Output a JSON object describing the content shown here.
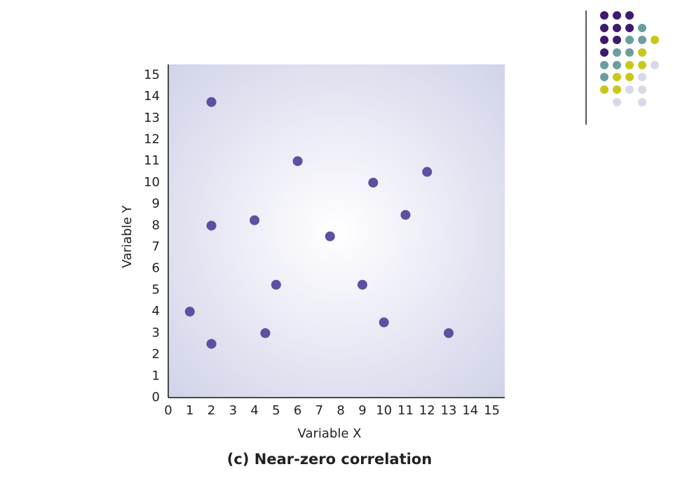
{
  "chart_data": {
    "type": "scatter",
    "title": "(c) Near-zero correlation",
    "x_label": "Variable X",
    "y_label": "Variable Y",
    "x": [
      2,
      6,
      12,
      9.5,
      11,
      4,
      2,
      7.5,
      5,
      9,
      1,
      10,
      4.5,
      13,
      2
    ],
    "values": [
      13.75,
      11,
      10.5,
      10,
      8.5,
      8.25,
      8,
      7.5,
      5.25,
      5.25,
      4,
      3.5,
      3,
      3,
      2.5
    ],
    "color": "#5e4fa2",
    "xlim": [
      0,
      15.6
    ],
    "ylim": [
      0,
      15.5
    ],
    "xticks": [
      0,
      1,
      2,
      3,
      4,
      5,
      6,
      7,
      8,
      9,
      10,
      11,
      12,
      13,
      14,
      15
    ],
    "yticks": [
      0,
      1,
      2,
      3,
      4,
      5,
      6,
      7,
      8,
      9,
      10,
      11,
      12,
      13,
      14,
      15
    ],
    "grid": false
  }
}
